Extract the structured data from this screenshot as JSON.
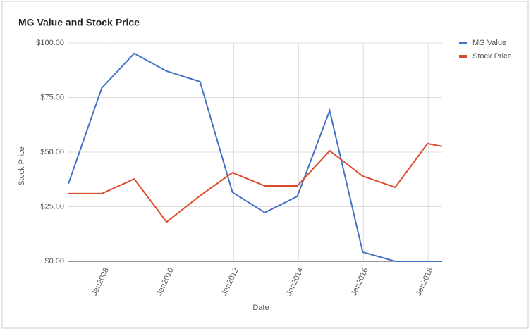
{
  "chart_data": {
    "type": "line",
    "title": "MG Value and Stock Price",
    "x_label": "Date",
    "y_label": "Stock Price",
    "x": [
      2006.9,
      2007.93,
      2008.93,
      2009.93,
      2010.96,
      2011.96,
      2012.96,
      2013.96,
      2014.96,
      2015.98,
      2016.98,
      2017.98,
      2018.43
    ],
    "series": [
      {
        "name": "MG Value",
        "color": "#4472c4",
        "values": [
          35.5,
          79.4,
          95.2,
          87.1,
          82.3,
          31.6,
          22.3,
          29.7,
          69,
          4.2,
          0,
          0,
          0
        ]
      },
      {
        "name": "Stock Price",
        "color": "#db4c2c",
        "values": [
          31,
          31,
          37.7,
          18,
          30,
          40.6,
          34.5,
          34.5,
          50.6,
          39,
          33.9,
          53.9,
          52.6
        ]
      }
    ],
    "xlim": [
      2006.9,
      2018.43
    ],
    "xticks": [
      {
        "value": 2008,
        "label": "Jan2008"
      },
      {
        "value": 2010,
        "label": "Jan2010"
      },
      {
        "value": 2012,
        "label": "Jan2012"
      },
      {
        "value": 2014,
        "label": "Jan2014"
      },
      {
        "value": 2016,
        "label": "Jan2016"
      },
      {
        "value": 2018,
        "label": "Jan2018"
      }
    ],
    "ylim": [
      0,
      100
    ],
    "yticks": [
      {
        "value": 0,
        "label": "$0.00"
      },
      {
        "value": 25,
        "label": "$25.00"
      },
      {
        "value": 50,
        "label": "$50.00"
      },
      {
        "value": 75,
        "label": "$75.00"
      },
      {
        "value": 100,
        "label": "$100.00"
      }
    ],
    "grid": true,
    "legend": "right"
  }
}
